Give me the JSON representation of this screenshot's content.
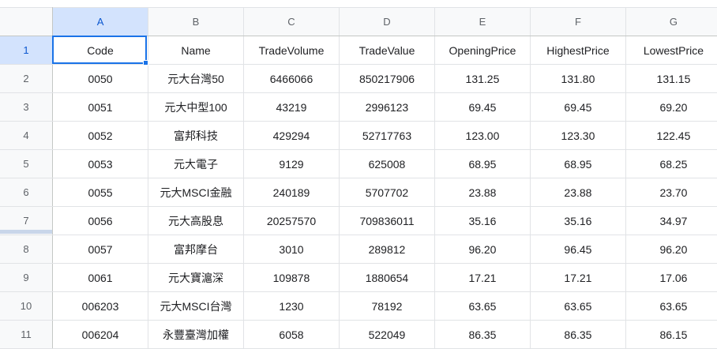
{
  "columns": [
    "A",
    "B",
    "C",
    "D",
    "E",
    "F",
    "G"
  ],
  "rows": [
    {
      "num": "1",
      "cells": [
        "Code",
        "Name",
        "TradeVolume",
        "TradeValue",
        "OpeningPrice",
        "HighestPrice",
        "LowestPrice"
      ]
    },
    {
      "num": "2",
      "cells": [
        "0050",
        "元大台灣50",
        "6466066",
        "850217906",
        "131.25",
        "131.80",
        "131.15"
      ]
    },
    {
      "num": "3",
      "cells": [
        "0051",
        "元大中型100",
        "43219",
        "2996123",
        "69.45",
        "69.45",
        "69.20"
      ]
    },
    {
      "num": "4",
      "cells": [
        "0052",
        "富邦科技",
        "429294",
        "52717763",
        "123.00",
        "123.30",
        "122.45"
      ]
    },
    {
      "num": "5",
      "cells": [
        "0053",
        "元大電子",
        "9129",
        "625008",
        "68.95",
        "68.95",
        "68.25"
      ]
    },
    {
      "num": "6",
      "cells": [
        "0055",
        "元大MSCI金融",
        "240189",
        "5707702",
        "23.88",
        "23.88",
        "23.70"
      ]
    },
    {
      "num": "7",
      "cells": [
        "0056",
        "元大高股息",
        "20257570",
        "709836011",
        "35.16",
        "35.16",
        "34.97"
      ]
    },
    {
      "num": "8",
      "cells": [
        "0057",
        "富邦摩台",
        "3010",
        "289812",
        "96.20",
        "96.45",
        "96.20"
      ]
    },
    {
      "num": "9",
      "cells": [
        "0061",
        "元大寶滬深",
        "109878",
        "1880654",
        "17.21",
        "17.21",
        "17.06"
      ]
    },
    {
      "num": "10",
      "cells": [
        "006203",
        "元大MSCI台灣",
        "1230",
        "78192",
        "63.65",
        "63.65",
        "63.65"
      ]
    },
    {
      "num": "11",
      "cells": [
        "006204",
        "永豐臺灣加權",
        "6058",
        "522049",
        "86.35",
        "86.35",
        "86.15"
      ]
    }
  ],
  "colors": {
    "selection": "#1a73e8",
    "header_bg": "#f8f9fa",
    "active_header_bg": "#d3e3fd",
    "gridline": "#e1e3e6"
  }
}
